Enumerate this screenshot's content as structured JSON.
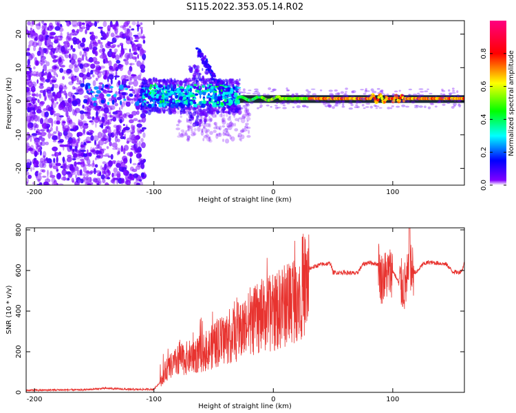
{
  "figure": {
    "title": "S115.2022.353.05.14.R02"
  },
  "chart_data": [
    {
      "type": "heatmap",
      "xlabel": "Height of straight line (km)",
      "ylabel": "Frequency (Hz)",
      "xlim": [
        -207,
        160
      ],
      "ylim": [
        -25,
        24
      ],
      "xticks": [
        -200,
        -100,
        0,
        100
      ],
      "yticks": [
        -20,
        -10,
        0,
        10,
        20
      ],
      "colorbar": {
        "label": "Normalized spectral amplitude",
        "range": [
          0,
          1
        ],
        "ticks": [
          "0.0",
          "0.2",
          "0.4",
          "0.6",
          "0.8"
        ],
        "tick_values": [
          0,
          0.2,
          0.4,
          0.6,
          0.8
        ],
        "colors": [
          "#ffffff",
          "#7f00ff",
          "#0000ff",
          "#00ffff",
          "#00ff00",
          "#ffff00",
          "#ff0000",
          "#ff0080"
        ]
      },
      "features": {
        "carrier_line_hz": 0.8,
        "carrier_band_hz": [
          -0.5,
          1.8
        ],
        "carrier_start_km": -30,
        "noise_region_km": [
          -207,
          -108
        ],
        "scintillation_region_km": [
          -110,
          -30
        ]
      }
    },
    {
      "type": "line",
      "xlabel": "Height of straight line (km)",
      "ylabel": "SNR (10 * v/v)",
      "xlim": [
        -207,
        160
      ],
      "ylim": [
        0,
        810
      ],
      "xticks": [
        -200,
        -100,
        0,
        100
      ],
      "yticks": [
        0,
        200,
        400,
        600,
        800
      ],
      "color": "#e8332f",
      "series": [
        {
          "x": [
            -207,
            -180,
            -160,
            -140,
            -120,
            -100,
            -95,
            -90,
            -80,
            -70,
            -60,
            -50,
            -40,
            -30,
            -20,
            -10,
            0,
            10,
            20,
            30,
            40,
            48,
            50,
            60,
            70,
            75,
            80,
            88,
            90,
            95,
            100,
            105,
            110,
            115,
            120,
            125,
            130,
            140,
            145,
            150,
            155,
            158,
            160
          ],
          "y": [
            10,
            12,
            12,
            20,
            14,
            15,
            50,
            120,
            170,
            190,
            210,
            250,
            290,
            330,
            370,
            410,
            430,
            470,
            540,
            610,
            630,
            635,
            590,
            590,
            585,
            630,
            640,
            630,
            560,
            580,
            600,
            540,
            520,
            600,
            590,
            630,
            640,
            635,
            630,
            595,
            590,
            600,
            640
          ]
        }
      ]
    }
  ]
}
